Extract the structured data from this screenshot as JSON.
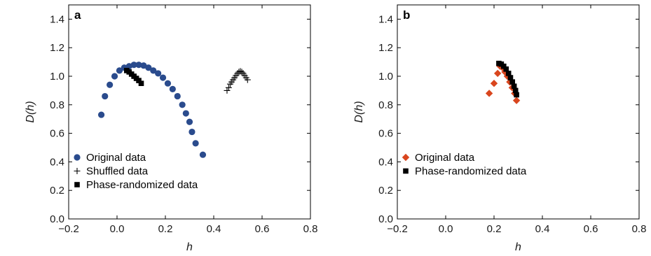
{
  "chart_data": [
    {
      "type": "scatter",
      "panel_label": "a",
      "xlabel": "h",
      "ylabel": "D(h)",
      "xlim": [
        -0.2,
        0.8
      ],
      "ylim": [
        0.0,
        1.5
      ],
      "xticks": [
        "-0.2",
        "0.0",
        "0.2",
        "0.4",
        "0.6",
        "0.8"
      ],
      "yticks": [
        "0.0",
        "0.2",
        "0.4",
        "0.6",
        "0.8",
        "1.0",
        "1.2",
        "1.4"
      ],
      "legend_position": "bottom-left",
      "series": [
        {
          "name": "Original data",
          "marker": "circle",
          "color": "#2a4b8d",
          "points": [
            [
              -0.065,
              0.73
            ],
            [
              -0.05,
              0.86
            ],
            [
              -0.03,
              0.94
            ],
            [
              -0.01,
              1.0
            ],
            [
              0.01,
              1.04
            ],
            [
              0.03,
              1.06
            ],
            [
              0.05,
              1.07
            ],
            [
              0.07,
              1.08
            ],
            [
              0.09,
              1.08
            ],
            [
              0.11,
              1.075
            ],
            [
              0.13,
              1.06
            ],
            [
              0.15,
              1.04
            ],
            [
              0.17,
              1.02
            ],
            [
              0.19,
              0.99
            ],
            [
              0.21,
              0.95
            ],
            [
              0.23,
              0.91
            ],
            [
              0.25,
              0.86
            ],
            [
              0.27,
              0.8
            ],
            [
              0.285,
              0.74
            ],
            [
              0.3,
              0.68
            ],
            [
              0.31,
              0.61
            ],
            [
              0.325,
              0.53
            ],
            [
              0.355,
              0.45
            ]
          ]
        },
        {
          "name": "Shuffled data",
          "marker": "plus",
          "color": "#000000",
          "points": [
            [
              0.455,
              0.9
            ],
            [
              0.462,
              0.92
            ],
            [
              0.468,
              0.945
            ],
            [
              0.474,
              0.96
            ],
            [
              0.48,
              0.975
            ],
            [
              0.486,
              0.99
            ],
            [
              0.492,
              1.005
            ],
            [
              0.498,
              1.02
            ],
            [
              0.504,
              1.03
            ],
            [
              0.51,
              1.035
            ],
            [
              0.516,
              1.03
            ],
            [
              0.522,
              1.02
            ],
            [
              0.528,
              1.005
            ],
            [
              0.534,
              0.99
            ],
            [
              0.54,
              0.975
            ]
          ]
        },
        {
          "name": "Phase-randomized data",
          "marker": "square",
          "color": "#000000",
          "points": [
            [
              0.04,
              1.04
            ],
            [
              0.05,
              1.03
            ],
            [
              0.06,
              1.015
            ],
            [
              0.07,
              1.0
            ],
            [
              0.08,
              0.985
            ],
            [
              0.09,
              0.97
            ],
            [
              0.1,
              0.95
            ]
          ]
        }
      ]
    },
    {
      "type": "scatter",
      "panel_label": "b",
      "xlabel": "h",
      "ylabel": "D(h)",
      "xlim": [
        -0.2,
        0.8
      ],
      "ylim": [
        0.0,
        1.5
      ],
      "xticks": [
        "-0.2",
        "0.0",
        "0.2",
        "0.4",
        "0.6",
        "0.8"
      ],
      "yticks": [
        "0.0",
        "0.2",
        "0.4",
        "0.6",
        "0.8",
        "1.0",
        "1.2",
        "1.4"
      ],
      "legend_position": "bottom-left",
      "series": [
        {
          "name": "Original data",
          "marker": "diamond",
          "color": "#d9461e",
          "points": [
            [
              0.18,
              0.88
            ],
            [
              0.2,
              0.95
            ],
            [
              0.215,
              1.02
            ],
            [
              0.225,
              1.07
            ],
            [
              0.235,
              1.06
            ],
            [
              0.245,
              1.03
            ],
            [
              0.255,
              1.0
            ],
            [
              0.265,
              0.96
            ],
            [
              0.275,
              0.92
            ],
            [
              0.285,
              0.88
            ],
            [
              0.293,
              0.83
            ]
          ]
        },
        {
          "name": "Phase-randomized data",
          "marker": "square",
          "color": "#000000",
          "points": [
            [
              0.22,
              1.09
            ],
            [
              0.23,
              1.085
            ],
            [
              0.24,
              1.07
            ],
            [
              0.25,
              1.05
            ],
            [
              0.26,
              1.02
            ],
            [
              0.268,
              0.99
            ],
            [
              0.276,
              0.96
            ],
            [
              0.283,
              0.93
            ],
            [
              0.289,
              0.9
            ],
            [
              0.293,
              0.87
            ]
          ]
        }
      ]
    }
  ]
}
